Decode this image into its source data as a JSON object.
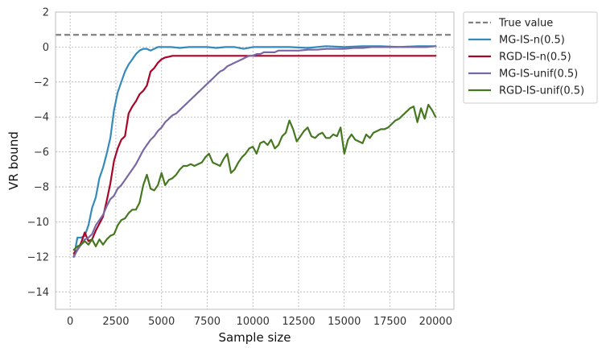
{
  "chart_data": {
    "type": "line",
    "xlabel": "Sample size",
    "ylabel": "VR bound",
    "xlim": [
      -800,
      21000
    ],
    "ylim": [
      -15,
      2
    ],
    "xticks": [
      0,
      2500,
      5000,
      7500,
      10000,
      12500,
      15000,
      17500,
      20000
    ],
    "xtick_labels": [
      "0",
      "2500",
      "5000",
      "7500",
      "10000",
      "12500",
      "15000",
      "17500",
      "20000"
    ],
    "yticks": [
      -14,
      -12,
      -10,
      -8,
      -6,
      -4,
      -2,
      0,
      2
    ],
    "ytick_labels": [
      "−14",
      "−12",
      "−10",
      "−8",
      "−6",
      "−4",
      "−2",
      "0",
      "2"
    ],
    "grid": true,
    "legend_position": "outside-top-right",
    "reference_line": {
      "name": "True value",
      "y": 0.7,
      "color": "#808080",
      "dashed": true
    },
    "series": [
      {
        "name": "MG-IS-n(0.5)",
        "color": "#348ABD",
        "points": [
          [
            200,
            -12
          ],
          [
            400,
            -10.9
          ],
          [
            600,
            -10.9
          ],
          [
            800,
            -10.8
          ],
          [
            1000,
            -10.2
          ],
          [
            1200,
            -9.2
          ],
          [
            1400,
            -8.6
          ],
          [
            1600,
            -7.5
          ],
          [
            1800,
            -6.9
          ],
          [
            2000,
            -6.1
          ],
          [
            2200,
            -5.2
          ],
          [
            2400,
            -3.6
          ],
          [
            2600,
            -2.6
          ],
          [
            2800,
            -2.0
          ],
          [
            3000,
            -1.4
          ],
          [
            3200,
            -1.0
          ],
          [
            3400,
            -0.7
          ],
          [
            3600,
            -0.4
          ],
          [
            3800,
            -0.2
          ],
          [
            4000,
            -0.1
          ],
          [
            4200,
            -0.1
          ],
          [
            4400,
            -0.2
          ],
          [
            4600,
            -0.1
          ],
          [
            4800,
            0.0
          ],
          [
            5000,
            0.0
          ],
          [
            5500,
            0.0
          ],
          [
            6000,
            -0.05
          ],
          [
            6500,
            0.0
          ],
          [
            7000,
            0.0
          ],
          [
            7500,
            0.0
          ],
          [
            8000,
            -0.05
          ],
          [
            8500,
            0.0
          ],
          [
            9000,
            0.0
          ],
          [
            9500,
            -0.1
          ],
          [
            10000,
            0.0
          ],
          [
            11000,
            0.0
          ],
          [
            12000,
            0.0
          ],
          [
            13000,
            -0.05
          ],
          [
            14000,
            0.05
          ],
          [
            15000,
            0.0
          ],
          [
            16000,
            0.05
          ],
          [
            17000,
            0.05
          ],
          [
            18000,
            0.0
          ],
          [
            19000,
            0.05
          ],
          [
            20000,
            0.05
          ]
        ]
      },
      {
        "name": "RGD-IS-n(0.5)",
        "color": "#A60628",
        "points": [
          [
            200,
            -11.8
          ],
          [
            400,
            -11.6
          ],
          [
            600,
            -11.2
          ],
          [
            800,
            -10.6
          ],
          [
            1000,
            -11.1
          ],
          [
            1200,
            -11.0
          ],
          [
            1400,
            -10.5
          ],
          [
            1600,
            -10.1
          ],
          [
            1800,
            -9.7
          ],
          [
            2000,
            -8.8
          ],
          [
            2200,
            -7.8
          ],
          [
            2400,
            -6.5
          ],
          [
            2600,
            -5.8
          ],
          [
            2800,
            -5.3
          ],
          [
            3000,
            -5.1
          ],
          [
            3200,
            -3.8
          ],
          [
            3400,
            -3.4
          ],
          [
            3600,
            -3.1
          ],
          [
            3800,
            -2.7
          ],
          [
            4000,
            -2.5
          ],
          [
            4200,
            -2.2
          ],
          [
            4400,
            -1.4
          ],
          [
            4600,
            -1.2
          ],
          [
            4800,
            -0.9
          ],
          [
            5000,
            -0.7
          ],
          [
            5200,
            -0.6
          ],
          [
            5400,
            -0.55
          ],
          [
            5600,
            -0.5
          ],
          [
            6000,
            -0.5
          ],
          [
            7000,
            -0.5
          ],
          [
            8000,
            -0.5
          ],
          [
            9000,
            -0.5
          ],
          [
            10000,
            -0.5
          ],
          [
            11000,
            -0.5
          ],
          [
            12000,
            -0.5
          ],
          [
            13000,
            -0.5
          ],
          [
            14000,
            -0.5
          ],
          [
            15000,
            -0.5
          ],
          [
            16000,
            -0.5
          ],
          [
            17000,
            -0.5
          ],
          [
            18000,
            -0.5
          ],
          [
            19000,
            -0.5
          ],
          [
            20000,
            -0.5
          ]
        ]
      },
      {
        "name": "MG-IS-unif(0.5)",
        "color": "#7A68A6",
        "points": [
          [
            200,
            -12
          ],
          [
            400,
            -11.6
          ],
          [
            600,
            -11.3
          ],
          [
            800,
            -11.0
          ],
          [
            1000,
            -10.9
          ],
          [
            1200,
            -10.7
          ],
          [
            1400,
            -10.2
          ],
          [
            1600,
            -9.9
          ],
          [
            1800,
            -9.6
          ],
          [
            2000,
            -9.1
          ],
          [
            2200,
            -8.7
          ],
          [
            2400,
            -8.5
          ],
          [
            2600,
            -8.1
          ],
          [
            2800,
            -7.9
          ],
          [
            3000,
            -7.6
          ],
          [
            3200,
            -7.3
          ],
          [
            3400,
            -7.0
          ],
          [
            3600,
            -6.7
          ],
          [
            3800,
            -6.3
          ],
          [
            4000,
            -5.9
          ],
          [
            4200,
            -5.6
          ],
          [
            4400,
            -5.3
          ],
          [
            4600,
            -5.1
          ],
          [
            4800,
            -4.8
          ],
          [
            5000,
            -4.6
          ],
          [
            5200,
            -4.3
          ],
          [
            5400,
            -4.1
          ],
          [
            5600,
            -3.9
          ],
          [
            5800,
            -3.8
          ],
          [
            6000,
            -3.6
          ],
          [
            6200,
            -3.4
          ],
          [
            6400,
            -3.2
          ],
          [
            6600,
            -3.0
          ],
          [
            6800,
            -2.8
          ],
          [
            7000,
            -2.6
          ],
          [
            7200,
            -2.4
          ],
          [
            7400,
            -2.2
          ],
          [
            7600,
            -2.0
          ],
          [
            7800,
            -1.8
          ],
          [
            8000,
            -1.6
          ],
          [
            8200,
            -1.4
          ],
          [
            8400,
            -1.3
          ],
          [
            8600,
            -1.1
          ],
          [
            8800,
            -1.0
          ],
          [
            9000,
            -0.9
          ],
          [
            9200,
            -0.8
          ],
          [
            9400,
            -0.7
          ],
          [
            9600,
            -0.6
          ],
          [
            9800,
            -0.5
          ],
          [
            10000,
            -0.5
          ],
          [
            10200,
            -0.4
          ],
          [
            10400,
            -0.4
          ],
          [
            10600,
            -0.3
          ],
          [
            10800,
            -0.3
          ],
          [
            11000,
            -0.3
          ],
          [
            11200,
            -0.3
          ],
          [
            11400,
            -0.2
          ],
          [
            11600,
            -0.2
          ],
          [
            11800,
            -0.2
          ],
          [
            12000,
            -0.2
          ],
          [
            12500,
            -0.2
          ],
          [
            13000,
            -0.15
          ],
          [
            13500,
            -0.15
          ],
          [
            14000,
            -0.1
          ],
          [
            14500,
            -0.1
          ],
          [
            15000,
            -0.1
          ],
          [
            15500,
            -0.05
          ],
          [
            16000,
            -0.05
          ],
          [
            16500,
            0.0
          ],
          [
            17000,
            0.0
          ],
          [
            17500,
            0.0
          ],
          [
            18000,
            0.0
          ],
          [
            18500,
            0.0
          ],
          [
            19000,
            0.0
          ],
          [
            19500,
            0.0
          ],
          [
            20000,
            0.05
          ]
        ]
      },
      {
        "name": "RGD-IS-unif(0.5)",
        "color": "#467821",
        "points": [
          [
            200,
            -11.6
          ],
          [
            400,
            -11.4
          ],
          [
            600,
            -11.3
          ],
          [
            800,
            -11.1
          ],
          [
            1000,
            -11.3
          ],
          [
            1200,
            -11.0
          ],
          [
            1400,
            -11.4
          ],
          [
            1600,
            -11.0
          ],
          [
            1800,
            -11.3
          ],
          [
            2000,
            -11.0
          ],
          [
            2200,
            -10.8
          ],
          [
            2400,
            -10.7
          ],
          [
            2600,
            -10.2
          ],
          [
            2800,
            -9.9
          ],
          [
            3000,
            -9.8
          ],
          [
            3200,
            -9.5
          ],
          [
            3400,
            -9.3
          ],
          [
            3600,
            -9.3
          ],
          [
            3800,
            -8.9
          ],
          [
            4000,
            -7.9
          ],
          [
            4200,
            -7.3
          ],
          [
            4400,
            -8.1
          ],
          [
            4600,
            -8.2
          ],
          [
            4800,
            -7.9
          ],
          [
            5000,
            -7.2
          ],
          [
            5200,
            -7.9
          ],
          [
            5400,
            -7.6
          ],
          [
            5600,
            -7.5
          ],
          [
            5800,
            -7.3
          ],
          [
            6000,
            -7.0
          ],
          [
            6200,
            -6.8
          ],
          [
            6400,
            -6.8
          ],
          [
            6600,
            -6.7
          ],
          [
            6800,
            -6.8
          ],
          [
            7000,
            -6.7
          ],
          [
            7200,
            -6.6
          ],
          [
            7400,
            -6.3
          ],
          [
            7600,
            -6.1
          ],
          [
            7800,
            -6.6
          ],
          [
            8000,
            -6.7
          ],
          [
            8200,
            -6.8
          ],
          [
            8400,
            -6.4
          ],
          [
            8600,
            -6.1
          ],
          [
            8800,
            -7.2
          ],
          [
            9000,
            -7.0
          ],
          [
            9200,
            -6.6
          ],
          [
            9400,
            -6.3
          ],
          [
            9600,
            -6.1
          ],
          [
            9800,
            -5.8
          ],
          [
            10000,
            -5.7
          ],
          [
            10200,
            -6.1
          ],
          [
            10400,
            -5.5
          ],
          [
            10600,
            -5.4
          ],
          [
            10800,
            -5.6
          ],
          [
            11000,
            -5.3
          ],
          [
            11200,
            -5.8
          ],
          [
            11400,
            -5.6
          ],
          [
            11600,
            -5.1
          ],
          [
            11800,
            -4.9
          ],
          [
            12000,
            -4.2
          ],
          [
            12200,
            -4.7
          ],
          [
            12400,
            -5.4
          ],
          [
            12600,
            -5.1
          ],
          [
            12800,
            -4.8
          ],
          [
            13000,
            -4.6
          ],
          [
            13200,
            -5.1
          ],
          [
            13400,
            -5.2
          ],
          [
            13600,
            -5.0
          ],
          [
            13800,
            -4.9
          ],
          [
            14000,
            -5.2
          ],
          [
            14200,
            -5.2
          ],
          [
            14400,
            -5.0
          ],
          [
            14600,
            -5.1
          ],
          [
            14800,
            -4.6
          ],
          [
            15000,
            -6.1
          ],
          [
            15200,
            -5.3
          ],
          [
            15400,
            -5.0
          ],
          [
            15600,
            -5.3
          ],
          [
            15800,
            -5.4
          ],
          [
            16000,
            -5.5
          ],
          [
            16200,
            -5.0
          ],
          [
            16400,
            -5.2
          ],
          [
            16600,
            -4.9
          ],
          [
            16800,
            -4.8
          ],
          [
            17000,
            -4.7
          ],
          [
            17200,
            -4.7
          ],
          [
            17400,
            -4.6
          ],
          [
            17600,
            -4.4
          ],
          [
            17800,
            -4.2
          ],
          [
            18000,
            -4.1
          ],
          [
            18200,
            -3.9
          ],
          [
            18400,
            -3.7
          ],
          [
            18600,
            -3.5
          ],
          [
            18800,
            -3.4
          ],
          [
            19000,
            -4.3
          ],
          [
            19200,
            -3.5
          ],
          [
            19400,
            -4.1
          ],
          [
            19600,
            -3.3
          ],
          [
            19800,
            -3.6
          ],
          [
            20000,
            -4.0
          ]
        ]
      }
    ]
  }
}
